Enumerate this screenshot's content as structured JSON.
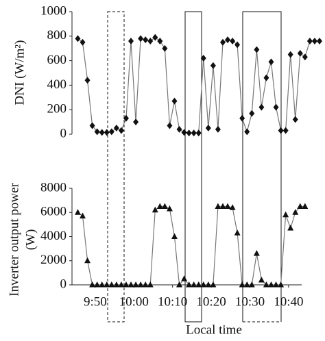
{
  "chart_data": [
    {
      "type": "line",
      "ylabel": "DNI (W/m²)",
      "marker": "diamond",
      "color": "#111111",
      "line_color": "#777777",
      "xlim": [
        584,
        648
      ],
      "ylim": [
        0,
        1000
      ],
      "yticks": [
        0,
        200,
        400,
        600,
        800,
        1000
      ],
      "x": [
        585.5,
        586.75,
        588,
        589.25,
        590.5,
        591.75,
        593,
        594.25,
        595.5,
        596.75,
        598,
        599.25,
        600.5,
        601.75,
        603,
        604.25,
        605.5,
        606.75,
        608,
        609.25,
        610.5,
        611.75,
        613,
        614.25,
        615.5,
        616.75,
        618,
        619.25,
        620.5,
        621.75,
        623,
        624.25,
        625.5,
        626.75,
        628,
        629.25,
        630.5,
        631.75,
        633,
        634.25,
        635.5,
        636.75,
        638,
        639.25,
        640.5,
        641.75,
        643,
        644.25,
        645.5,
        646.75,
        648
      ],
      "values": [
        780,
        750,
        440,
        70,
        20,
        15,
        15,
        20,
        50,
        30,
        130,
        760,
        100,
        780,
        770,
        760,
        790,
        760,
        700,
        70,
        270,
        40,
        15,
        10,
        10,
        10,
        620,
        50,
        560,
        40,
        750,
        770,
        760,
        730,
        130,
        20,
        170,
        690,
        220,
        460,
        590,
        220,
        30,
        30,
        650,
        120,
        660,
        630,
        760,
        760,
        760
      ]
    },
    {
      "type": "line",
      "ylabel": [
        "Inverter output power",
        "(W)"
      ],
      "xlabel": "Local time",
      "marker": "triangle",
      "color": "#111111",
      "line_color": "#777777",
      "xlim": [
        584,
        648
      ],
      "ylim": [
        0,
        8000
      ],
      "yticks": [
        0,
        2000,
        4000,
        6000,
        8000
      ],
      "xticks": [
        {
          "value": 590,
          "label": "9:50"
        },
        {
          "value": 600,
          "label": "10:00"
        },
        {
          "value": 610,
          "label": "10:10"
        },
        {
          "value": 620,
          "label": "10:20"
        },
        {
          "value": 630,
          "label": "10:30"
        },
        {
          "value": 640,
          "label": "10:40"
        }
      ],
      "x": [
        585.5,
        586.75,
        588,
        589.25,
        590.5,
        591.75,
        593,
        594.25,
        595.5,
        596.75,
        598,
        599.25,
        600.5,
        601.75,
        603,
        604.25,
        605.5,
        606.75,
        608,
        609.25,
        610.5,
        611.75,
        613,
        614.25,
        615.5,
        616.75,
        618,
        619.25,
        620.5,
        621.75,
        623,
        624.25,
        625.5,
        626.75,
        628,
        629.25,
        630.5,
        631.75,
        633,
        634.25,
        635.5,
        636.75,
        638,
        639.25,
        640.5,
        641.75,
        643,
        644.25,
        645.5,
        646.75,
        648
      ],
      "values": [
        6000,
        5700,
        2000,
        0,
        0,
        0,
        0,
        0,
        0,
        0,
        0,
        0,
        0,
        0,
        0,
        0,
        6200,
        6500,
        6500,
        6300,
        4000,
        0,
        500,
        0,
        0,
        0,
        0,
        0,
        0,
        6500,
        6500,
        6500,
        6400,
        4300,
        0,
        0,
        0,
        2600,
        400,
        0,
        0,
        0,
        0,
        5800,
        4700,
        6000,
        6500,
        6500,
        null,
        null,
        null
      ]
    }
  ]
}
